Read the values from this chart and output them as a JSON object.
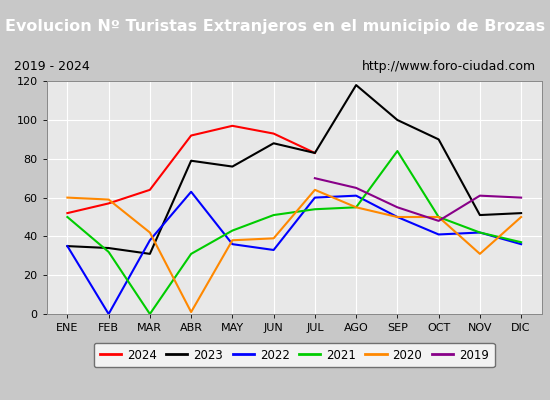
{
  "title": "Evolucion Nº Turistas Extranjeros en el municipio de Brozas",
  "subtitle_left": "2019 - 2024",
  "subtitle_right": "http://www.foro-ciudad.com",
  "months": [
    "ENE",
    "FEB",
    "MAR",
    "ABR",
    "MAY",
    "JUN",
    "JUL",
    "AGO",
    "SEP",
    "OCT",
    "NOV",
    "DIC"
  ],
  "series": {
    "2024": [
      52,
      57,
      64,
      92,
      97,
      93,
      83,
      null,
      null,
      null,
      null,
      null
    ],
    "2023": [
      35,
      34,
      31,
      79,
      76,
      88,
      83,
      118,
      100,
      90,
      51,
      52
    ],
    "2022": [
      35,
      0,
      38,
      63,
      36,
      33,
      60,
      61,
      50,
      41,
      42,
      36
    ],
    "2021": [
      50,
      32,
      0,
      31,
      43,
      51,
      54,
      55,
      84,
      50,
      42,
      37
    ],
    "2020": [
      60,
      59,
      42,
      1,
      38,
      39,
      64,
      55,
      50,
      50,
      31,
      50
    ],
    "2019": [
      null,
      null,
      null,
      null,
      null,
      null,
      70,
      65,
      55,
      48,
      61,
      60
    ]
  },
  "colors": {
    "2024": "#ff0000",
    "2023": "#000000",
    "2022": "#0000ff",
    "2021": "#00cc00",
    "2020": "#ff8800",
    "2019": "#880088"
  },
  "ylim": [
    0,
    120
  ],
  "yticks": [
    0,
    20,
    40,
    60,
    80,
    100,
    120
  ],
  "title_bg": "#4472c4",
  "title_color": "#ffffff",
  "subtitle_bg": "#e8e8e8",
  "subtitle_border": "#aaaaaa",
  "subtitle_color": "#000000",
  "plot_bg": "#e8e8e8",
  "outer_bg": "#c8c8c8",
  "grid_color": "#ffffff",
  "title_fontsize": 11.5,
  "subtitle_fontsize": 9,
  "tick_fontsize": 8,
  "legend_fontsize": 8.5
}
